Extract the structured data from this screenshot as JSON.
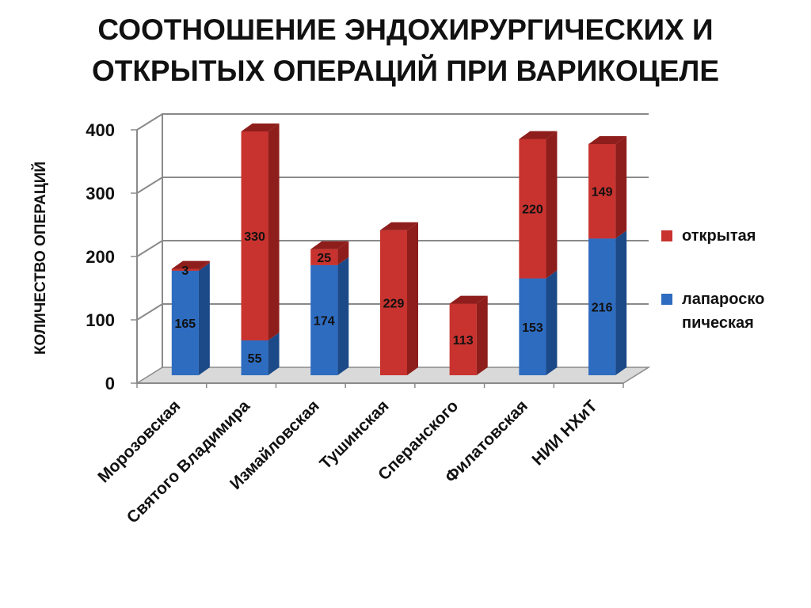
{
  "colors": {
    "open": "#c8332f",
    "open_dark": "#8e1e1b",
    "lap": "#2e6cc0",
    "lap_dark": "#1c4a88",
    "grid": "#8a8a8a",
    "floor": "#d9d9d9"
  },
  "chart_data": {
    "type": "bar",
    "stacked": true,
    "three_d": true,
    "title_lines": [
      "СООТНОШЕНИЕ ЭНДОХИРУРГИЧЕСКИХ И",
      "ОТКРЫТЫХ ОПЕРАЦИЙ ПРИ ВАРИКОЦЕЛЕ"
    ],
    "ylabel": "КОЛИЧЕСТВО ОПЕРАЦИЙ",
    "xlabel": "",
    "ylim": [
      0,
      400
    ],
    "yticks": [
      0,
      100,
      200,
      300,
      400
    ],
    "grid": true,
    "legend_position": "right",
    "categories": [
      "Морозовская",
      "Святого Владимира",
      "Измайловская",
      "Тушинская",
      "Сперанского",
      "Филатовская",
      "НИИ НХиТ"
    ],
    "series": [
      {
        "name": "лапароско пическая",
        "legend_lines": [
          "лапароско",
          "пическая"
        ],
        "key": "lap",
        "values": [
          165,
          55,
          174,
          0,
          0,
          153,
          216
        ],
        "labels": [
          "165",
          "55",
          "174",
          "",
          "",
          "153",
          "216"
        ]
      },
      {
        "name": "открытая",
        "legend_lines": [
          "открытая"
        ],
        "key": "open",
        "values": [
          3,
          330,
          25,
          229,
          113,
          220,
          149
        ],
        "labels": [
          "3",
          "330",
          "25",
          "229",
          "113",
          "220",
          "149"
        ]
      }
    ]
  }
}
